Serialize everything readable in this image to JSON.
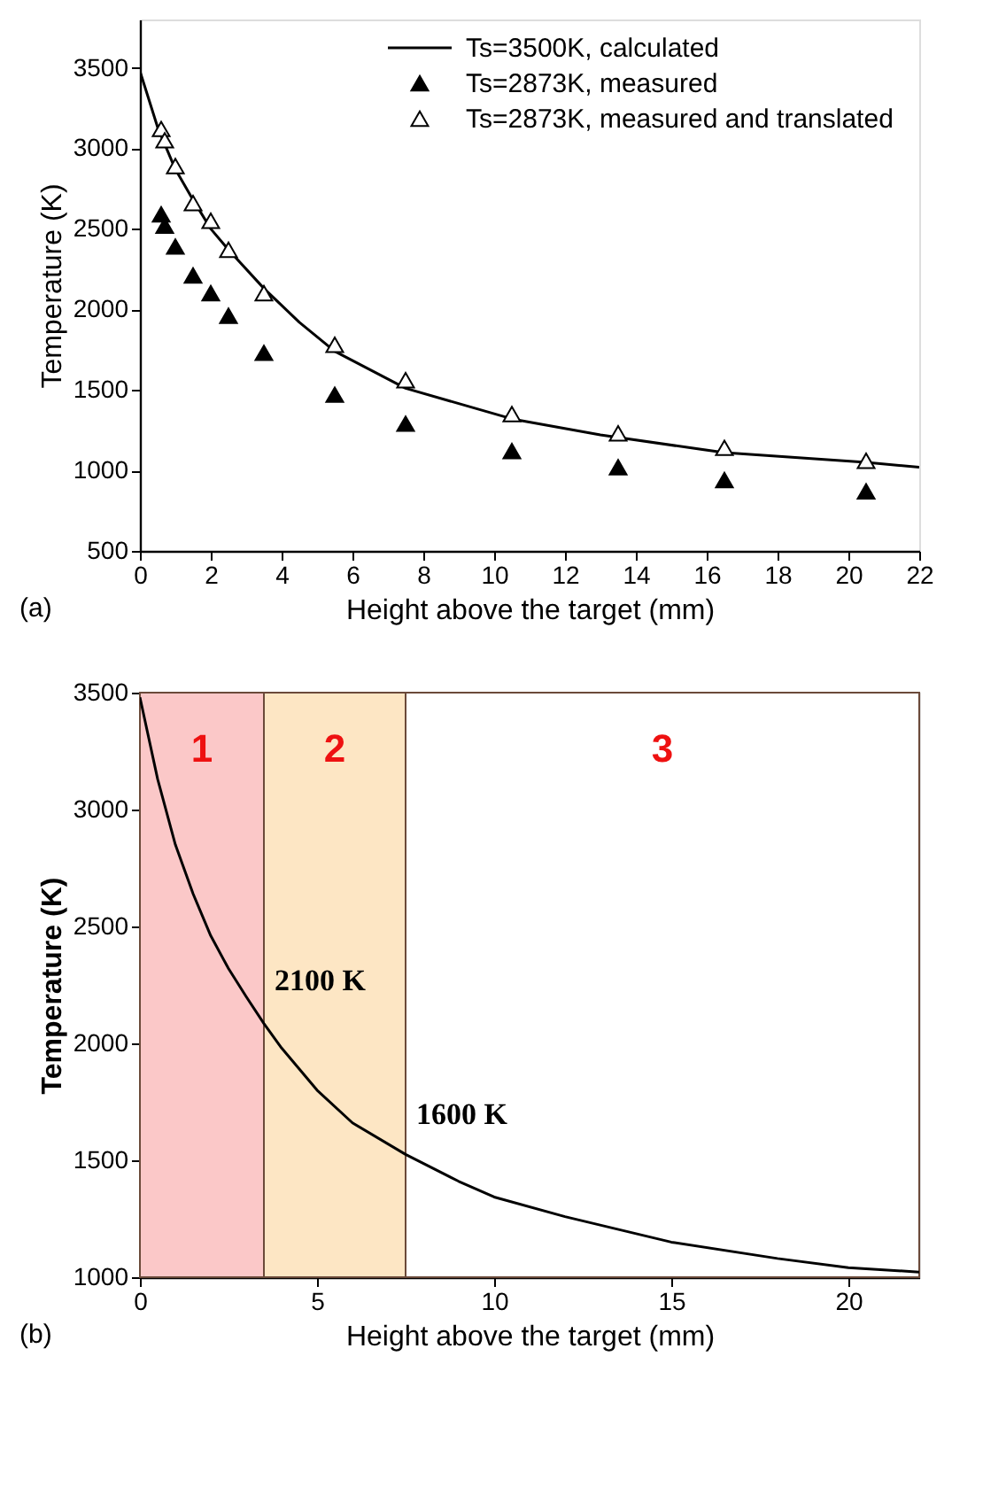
{
  "chart_data": [
    {
      "type": "scatter",
      "xlabel": "Height above the target (mm)",
      "ylabel": "Temperature (K)",
      "xlim": [
        0,
        22
      ],
      "ylim": [
        500,
        3800
      ],
      "xticks": [
        0,
        2,
        4,
        6,
        8,
        10,
        12,
        14,
        16,
        18,
        20,
        22
      ],
      "yticks": [
        500,
        1000,
        1500,
        2000,
        2500,
        3000,
        3500
      ],
      "grid": false,
      "legend": "top right",
      "annotations": [
        "(a)"
      ],
      "series": [
        {
          "name": "Ts=3500K, calculated",
          "type": "line",
          "color": "#000000",
          "marker": "none",
          "line_style": "solid",
          "x": [
            0,
            0.5,
            1,
            1.5,
            2,
            2.5,
            3.5,
            4.5,
            5.5,
            7.5,
            10.5,
            13,
            16.5,
            20.5,
            22
          ],
          "values": [
            3480,
            3130,
            2870,
            2680,
            2500,
            2370,
            2130,
            1920,
            1740,
            1510,
            1320,
            1220,
            1110,
            1050,
            1020
          ]
        },
        {
          "name": "Ts=2873K, measured",
          "type": "scatter",
          "color": "#000000",
          "marker": "triangle",
          "x": [
            0.6,
            0.7,
            1.0,
            1.5,
            2.0,
            2.5,
            3.5,
            5.5,
            7.5,
            10.5,
            13.5,
            16.5,
            20.5
          ],
          "values": [
            2590,
            2520,
            2390,
            2210,
            2100,
            1960,
            1730,
            1470,
            1290,
            1120,
            1020,
            940,
            870
          ]
        },
        {
          "name": "Ts=2873K, measured and translated",
          "type": "scatter",
          "color": "#ffffff",
          "marker": "triangle",
          "x": [
            0.6,
            0.7,
            1.0,
            1.5,
            2.0,
            2.5,
            3.5,
            5.5,
            7.5,
            10.5,
            13.5,
            16.5,
            20.5
          ],
          "values": [
            3120,
            3050,
            2890,
            2660,
            2550,
            2370,
            2100,
            1780,
            1560,
            1350,
            1230,
            1140,
            1060
          ]
        }
      ]
    },
    {
      "type": "line",
      "xlabel": "Height above the target (mm)",
      "ylabel": "Temperature (K)",
      "xlim": [
        0,
        22
      ],
      "ylim": [
        1000,
        3500
      ],
      "xticks": [
        0,
        5,
        10,
        15,
        20
      ],
      "yticks": [
        1000,
        1500,
        2000,
        2500,
        3000,
        3500
      ],
      "grid": false,
      "legend": false,
      "annotations": [
        "(b)",
        {
          "text": "2100 K",
          "x": 3.5,
          "y": 2100
        },
        {
          "text": "1600 K",
          "x": 7.5,
          "y": 1525
        }
      ],
      "bands": [
        {
          "axis": "x",
          "from": 0,
          "to": 3.5,
          "label": "1",
          "color": "#fbc8c8"
        },
        {
          "axis": "x",
          "from": 3.5,
          "to": 7.5,
          "label": "2",
          "color": "#fde6c4"
        },
        {
          "axis": "x",
          "from": 7.5,
          "to": 22,
          "label": "3",
          "color": "#ffffff"
        }
      ],
      "series": [
        {
          "color": "#000000",
          "x": [
            0,
            0.5,
            1,
            1.5,
            2,
            2.5,
            3,
            3.5,
            4,
            5,
            6,
            7.5,
            9,
            10,
            12,
            15,
            18,
            20,
            22
          ],
          "values": [
            3480,
            3130,
            2850,
            2640,
            2460,
            2320,
            2200,
            2085,
            1980,
            1800,
            1660,
            1525,
            1410,
            1343,
            1259,
            1150,
            1080,
            1041,
            1022
          ]
        }
      ]
    }
  ]
}
